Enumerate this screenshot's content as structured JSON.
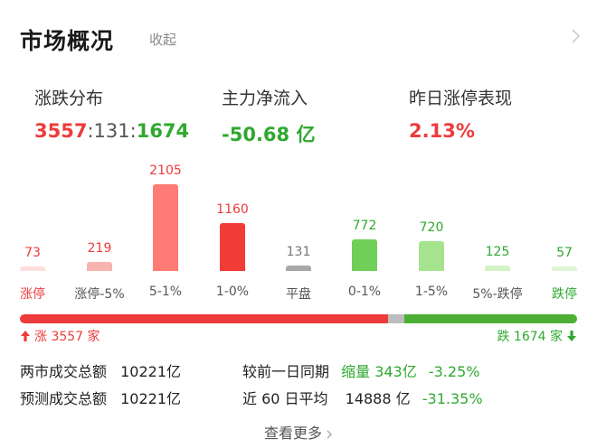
{
  "header": {
    "title": "市场概况",
    "collapse_label": "收起"
  },
  "stats": {
    "distribution": {
      "label": "涨跌分布",
      "up": "3557",
      "sep1": ":",
      "flat": "131",
      "sep2": ":",
      "down": "1674"
    },
    "net_inflow": {
      "label": "主力净流入",
      "value": "-50.68 亿"
    },
    "yesterday_limit_up": {
      "label": "昨日涨停表现",
      "value": "2.13%"
    }
  },
  "chart_data": {
    "type": "bar",
    "categories": [
      "涨停",
      "涨停-5%",
      "5-1%",
      "1-0%",
      "平盘",
      "0-1%",
      "1-5%",
      "5%-跌停",
      "跌停"
    ],
    "values": [
      73,
      219,
      2105,
      1160,
      131,
      772,
      720,
      125,
      57
    ],
    "colors": [
      "#fde0de",
      "#f7b4b0",
      "#ff7b75",
      "#f23c36",
      "#a8a8a8",
      "#6fcf59",
      "#a6e38e",
      "#d3f2c6",
      "#dff5d6"
    ],
    "label_colors": [
      "#ee3b3b",
      "#ee3b3b",
      "#ee3b3b",
      "#ee3b3b",
      "#777777",
      "#2fa82f",
      "#2fa82f",
      "#2fa82f",
      "#2fa82f"
    ],
    "category_colors": [
      "#ee3b3b",
      "#555555",
      "#555555",
      "#555555",
      "#555555",
      "#555555",
      "#555555",
      "#555555",
      "#2fa82f"
    ],
    "ylim": [
      0,
      2105
    ]
  },
  "ratio": {
    "up": 3557,
    "flat": 131,
    "down": 1674,
    "up_color": "#ee3b3b",
    "flat_color": "#bdbdbd",
    "down_color": "#4caf34"
  },
  "updown": {
    "up_label": "涨 3557 家",
    "down_label": "跌 1674 家"
  },
  "turnover": {
    "row1_label": "两市成交总额",
    "row1_value": "10221亿",
    "row2_label": "预测成交总额",
    "row2_value": "10221亿",
    "compare_label": "较前一日同期",
    "compare_tag": "缩量 343亿",
    "compare_pct": "-3.25%",
    "avg_label": "近 60 日平均",
    "avg_value": "14888 亿",
    "avg_pct": "-31.35%"
  },
  "footer": {
    "more_label": "查看更多"
  },
  "icons": {
    "top_right": "chevron-right-icon",
    "up_arrow": "arrow-up-icon",
    "down_arrow": "arrow-down-icon",
    "more": "chevron-right-icon"
  }
}
